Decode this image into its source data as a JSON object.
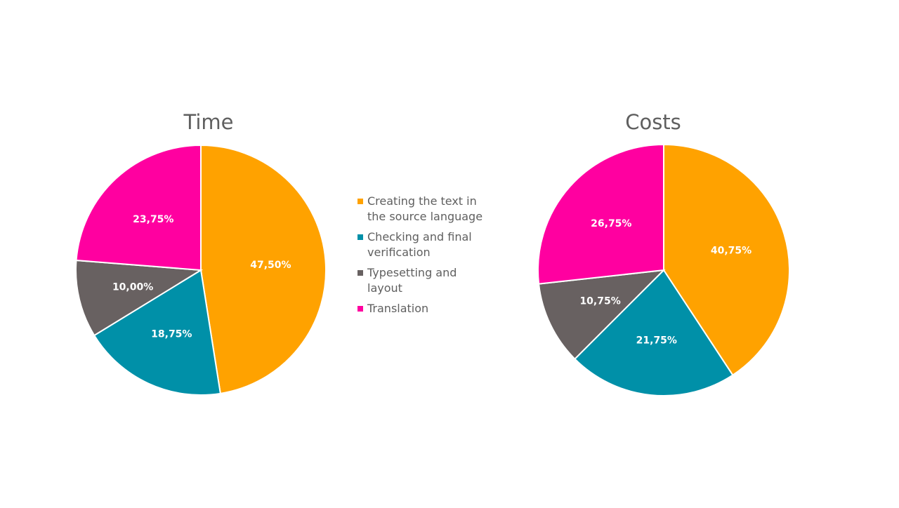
{
  "chart_data": [
    {
      "type": "pie",
      "title": "Time",
      "categories": [
        "Creating the text in the source language",
        "Checking and final verification",
        "Typesetting and layout",
        "Translation"
      ],
      "values": [
        47.5,
        18.75,
        10.0,
        23.75
      ],
      "labels": [
        "47,50%",
        "18,75%",
        "10,00%",
        "23,75%"
      ]
    },
    {
      "type": "pie",
      "title": "Costs",
      "categories": [
        "Creating the text in the source language",
        "Checking and final verification",
        "Typesetting and layout",
        "Translation"
      ],
      "values": [
        40.75,
        21.75,
        10.75,
        26.75
      ],
      "labels": [
        "40,75%",
        "21,75%",
        "10,75%",
        "26,75%"
      ]
    }
  ],
  "legend": {
    "items": [
      {
        "label": "Creating the text in the source language",
        "color": "#ffa200"
      },
      {
        "label": "Checking and final verification",
        "color": "#0090a8"
      },
      {
        "label": "Typesetting and layout",
        "color": "#686161"
      },
      {
        "label": "Translation",
        "color": "#ff00a0"
      }
    ]
  },
  "colors": [
    "#ffa200",
    "#0090a8",
    "#686161",
    "#ff00a0"
  ]
}
